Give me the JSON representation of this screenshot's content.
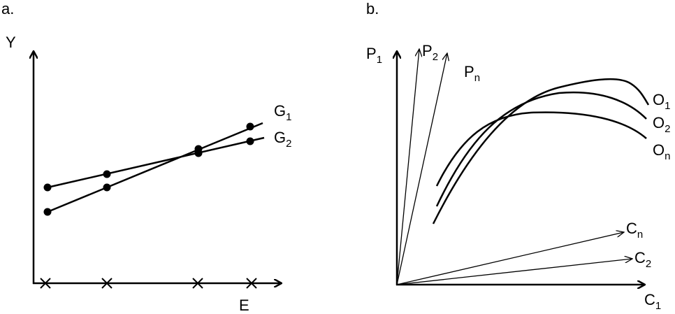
{
  "panel_a": {
    "label": "a.",
    "y_axis": "Y",
    "x_axis": "E",
    "series": [
      {
        "name": "G",
        "sub": "1"
      },
      {
        "name": "G",
        "sub": "2"
      }
    ]
  },
  "panel_b": {
    "label": "b.",
    "y_axes": [
      {
        "name": "P",
        "sub": "1"
      },
      {
        "name": "P",
        "sub": "2"
      },
      {
        "name": "P",
        "sub": "n"
      }
    ],
    "x_axes": [
      {
        "name": "C",
        "sub": "1"
      },
      {
        "name": "C",
        "sub": "2"
      },
      {
        "name": "C",
        "sub": "n"
      }
    ],
    "curves": [
      {
        "name": "O",
        "sub": "1"
      },
      {
        "name": "O",
        "sub": "2"
      },
      {
        "name": "O",
        "sub": "n"
      }
    ]
  }
}
